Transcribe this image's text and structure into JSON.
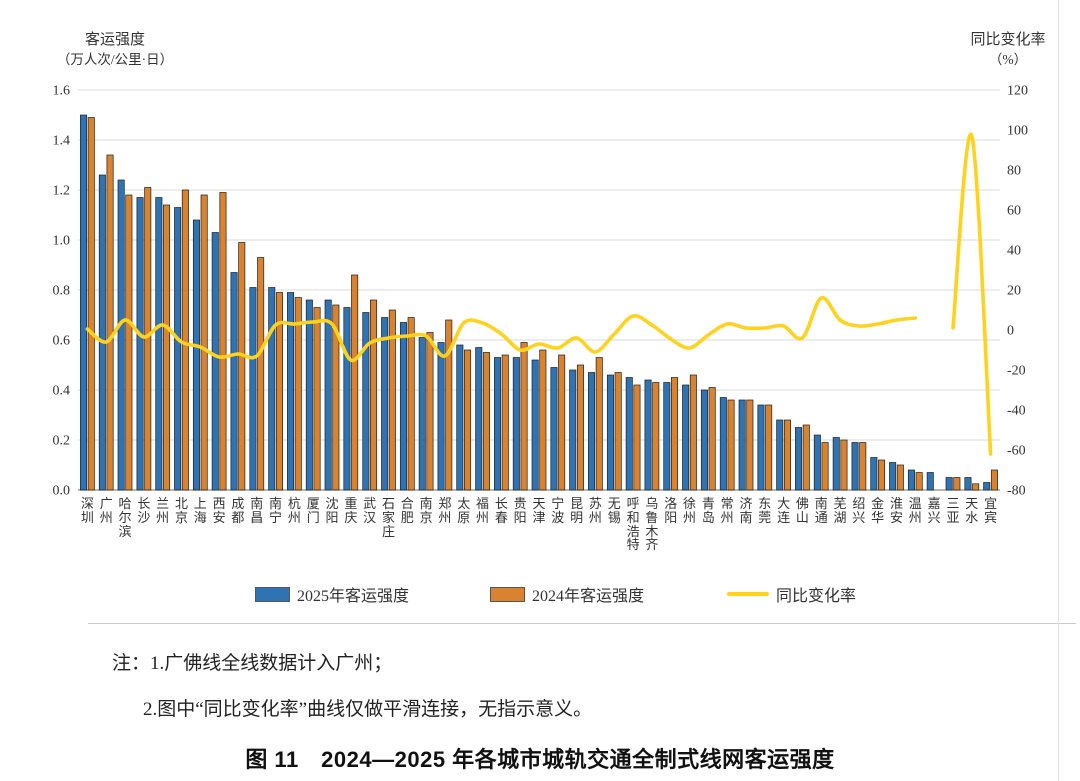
{
  "figure": {
    "title": "图 11　2024—2025 年各城市城轨交通全制式线网客运强度",
    "notes": [
      "注：1.广佛线全线数据计入广州；",
      "2.图中“同比变化率”曲线仅做平滑连接，无指示意义。"
    ]
  },
  "chart_data": {
    "type": "bar",
    "subtype": "grouped-bars-with-line",
    "grid": "horizontal-on",
    "legend_position": "bottom-center",
    "left_axis": {
      "title": "客运强度",
      "unit": "（万人次/公里·日）",
      "min": 0.0,
      "max": 1.6,
      "tick_step": 0.2
    },
    "right_axis": {
      "title": "同比变化率",
      "unit": "（%）",
      "min": -80,
      "max": 120,
      "tick_step": 20
    },
    "categories": [
      "深圳",
      "广州",
      "哈尔滨",
      "长沙",
      "兰州",
      "北京",
      "上海",
      "西安",
      "成都",
      "南昌",
      "南宁",
      "杭州",
      "厦门",
      "沈阳",
      "重庆",
      "武汉",
      "石家庄",
      "合肥",
      "南京",
      "郑州",
      "太原",
      "福州",
      "长春",
      "贵阳",
      "天津",
      "宁波",
      "昆明",
      "苏州",
      "无锡",
      "呼和浩特",
      "乌鲁木齐",
      "洛阳",
      "徐州",
      "青岛",
      "常州",
      "济南",
      "东莞",
      "大连",
      "佛山",
      "南通",
      "芜湖",
      "绍兴",
      "金华",
      "淮安",
      "温州",
      "嘉兴",
      "三亚",
      "天水",
      "宜宾"
    ],
    "series": [
      {
        "name": "2025年客运强度",
        "axis": "left",
        "type": "bar",
        "color": "#2E74B5",
        "values": [
          1.5,
          1.26,
          1.24,
          1.17,
          1.17,
          1.13,
          1.08,
          1.03,
          0.87,
          0.81,
          0.81,
          0.79,
          0.76,
          0.76,
          0.73,
          0.71,
          0.69,
          0.67,
          0.61,
          0.59,
          0.58,
          0.57,
          0.53,
          0.53,
          0.52,
          0.49,
          0.48,
          0.47,
          0.46,
          0.45,
          0.44,
          0.43,
          0.42,
          0.4,
          0.37,
          0.36,
          0.34,
          0.28,
          0.25,
          0.22,
          0.21,
          0.19,
          0.13,
          0.11,
          0.08,
          0.07,
          0.05,
          0.05,
          0.03
        ]
      },
      {
        "name": "2024年客运强度",
        "axis": "left",
        "type": "bar",
        "color": "#D9822F",
        "values": [
          1.49,
          1.34,
          1.18,
          1.21,
          1.14,
          1.2,
          1.18,
          1.19,
          0.99,
          0.93,
          0.79,
          0.77,
          0.73,
          0.74,
          0.86,
          0.76,
          0.72,
          0.69,
          0.63,
          0.68,
          0.56,
          0.55,
          0.54,
          0.59,
          0.56,
          0.54,
          0.5,
          0.53,
          0.47,
          0.42,
          0.43,
          0.45,
          0.46,
          0.41,
          0.36,
          0.36,
          0.34,
          0.28,
          0.26,
          0.19,
          0.2,
          0.19,
          0.12,
          0.1,
          0.07,
          null,
          0.05,
          0.025,
          0.08
        ]
      },
      {
        "name": "同比变化率",
        "axis": "right",
        "type": "line",
        "color": "#FFD21E",
        "values": [
          0.5,
          -6,
          5,
          -3.5,
          2.5,
          -6,
          -8.5,
          -13.5,
          -12,
          -13,
          2.5,
          3,
          4,
          3,
          -15,
          -6.5,
          -4,
          -3,
          -3,
          -13,
          3.5,
          3.5,
          -2,
          -10,
          -7,
          -9,
          -4,
          -11,
          -2,
          7,
          2.5,
          -4.5,
          -9,
          -2.5,
          3,
          1,
          1,
          2,
          -4,
          16,
          5,
          2,
          3,
          5,
          6,
          null,
          1,
          97,
          -62
        ]
      }
    ],
    "legend": [
      {
        "label": "2025年客运强度",
        "shape": "rect",
        "color": "#2E74B5"
      },
      {
        "label": "2024年客运强度",
        "shape": "rect",
        "color": "#D9822F"
      },
      {
        "label": "同比变化率",
        "shape": "line",
        "color": "#FFD21E"
      }
    ],
    "style": {
      "bar_edge_color": "#1f1f1f",
      "gridline_color": "#d9d9d9",
      "axis_line_color": "#8c8c8c",
      "text_color": "#333333"
    }
  }
}
